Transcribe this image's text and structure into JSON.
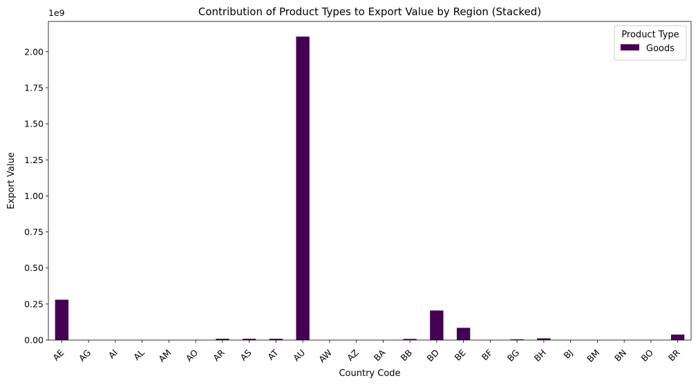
{
  "chart_data": {
    "type": "bar",
    "stacked": true,
    "title": "Contribution of Product Types to Export Value by Region (Stacked)",
    "xlabel": "Country Code",
    "ylabel": "Export Value",
    "y_offset_label": "1e9",
    "ylim": [
      0,
      2210000000
    ],
    "yticks": [
      0,
      250000000,
      500000000,
      750000000,
      1000000000,
      1250000000,
      1500000000,
      1750000000,
      2000000000
    ],
    "ytick_labels": [
      "0.00",
      "0.25",
      "0.50",
      "0.75",
      "1.00",
      "1.25",
      "1.50",
      "1.75",
      "2.00"
    ],
    "categories": [
      "AE",
      "AG",
      "AI",
      "AL",
      "AM",
      "AO",
      "AR",
      "AS",
      "AT",
      "AU",
      "AW",
      "AZ",
      "BA",
      "BB",
      "BD",
      "BE",
      "BF",
      "BG",
      "BH",
      "BJ",
      "BM",
      "BN",
      "BO",
      "BR"
    ],
    "series": [
      {
        "name": "Goods",
        "color": "#440154",
        "values": [
          280000000,
          0,
          0,
          0,
          0,
          0,
          9000000,
          9000000,
          9000000,
          2105000000,
          0,
          0,
          0,
          8000000,
          205000000,
          85000000,
          0,
          5000000,
          12000000,
          0,
          0,
          0,
          0,
          38000000
        ]
      }
    ],
    "legend": {
      "title": "Product Type",
      "placement": "top-right"
    },
    "grid": false
  }
}
